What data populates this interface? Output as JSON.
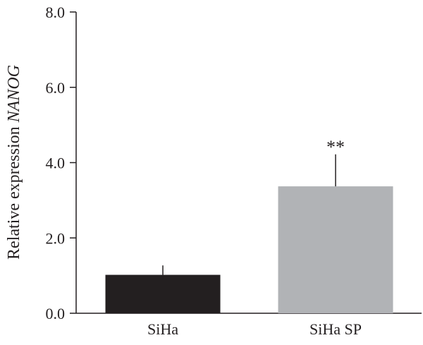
{
  "chart_data": {
    "type": "bar",
    "title": "",
    "categories": [
      "SiHa",
      "SiHa SP"
    ],
    "series": [
      {
        "values": [
          1.02,
          3.37
        ],
        "errors": [
          0.25,
          0.85
        ],
        "colors": [
          "#231f20",
          "#b1b3b6"
        ]
      }
    ],
    "annotations": [
      "",
      "**"
    ],
    "xlabel": "",
    "ylabel": {
      "prefix": "Relative expression ",
      "gene": "NANOG"
    },
    "ylim": [
      0,
      8
    ],
    "yticks": [
      "0.0",
      "2.0",
      "4.0",
      "6.0",
      "8.0"
    ],
    "grid": false,
    "legend": "none"
  }
}
